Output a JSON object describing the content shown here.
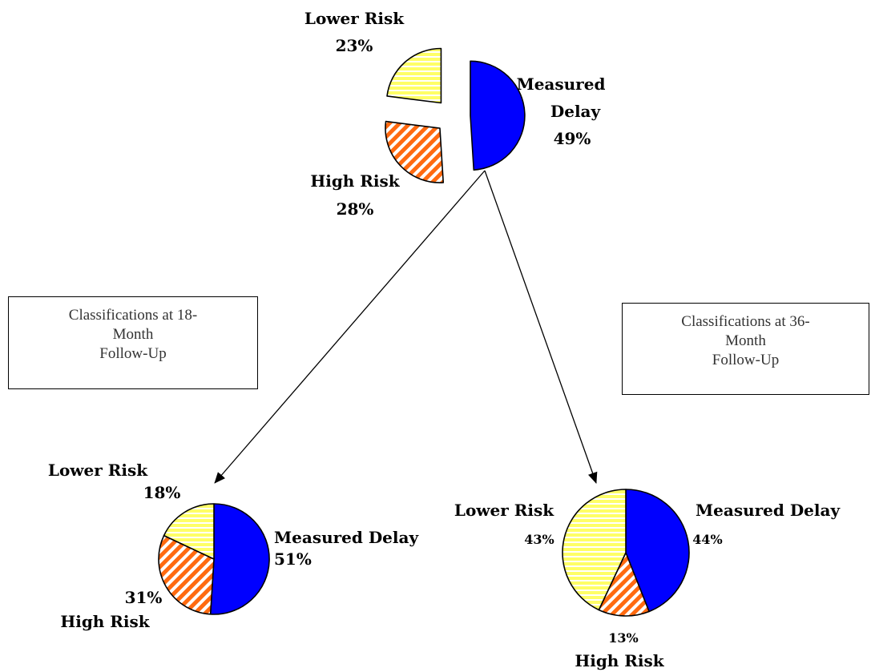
{
  "chart_data": [
    {
      "type": "pie",
      "slices": [
        {
          "name": "Lower Risk",
          "value": 23,
          "label": "23%",
          "color": "#ffff66",
          "pattern": "horizontal-stripes"
        },
        {
          "name": "High Risk",
          "value": 28,
          "label": "28%",
          "color": "#ff6600",
          "pattern": "diagonal-stripes"
        },
        {
          "name": "Measured Delay",
          "value": 49,
          "label": "49%",
          "color": "#0000ff",
          "pattern": "solid"
        }
      ]
    },
    {
      "type": "pie",
      "slices": [
        {
          "name": "Lower Risk",
          "value": 18,
          "label": "18%",
          "color": "#ffff66",
          "pattern": "horizontal-stripes"
        },
        {
          "name": "High Risk",
          "value": 31,
          "label": "31%",
          "color": "#ff6600",
          "pattern": "diagonal-stripes"
        },
        {
          "name": "Measured Delay",
          "value": 51,
          "label": "51%",
          "color": "#0000ff",
          "pattern": "solid"
        }
      ]
    },
    {
      "type": "pie",
      "slices": [
        {
          "name": "Lower Risk",
          "value": 43,
          "label": "43%",
          "color": "#ffff66",
          "pattern": "horizontal-stripes"
        },
        {
          "name": "High Risk",
          "value": 13,
          "label": "13%",
          "color": "#ff6600",
          "pattern": "diagonal-stripes"
        },
        {
          "name": "Measured Delay",
          "value": 44,
          "label": "44%",
          "color": "#0000ff",
          "pattern": "solid"
        }
      ]
    }
  ],
  "top": {
    "lower_name": "Lower Risk",
    "lower_pct": "23%",
    "high_name": "High Risk",
    "high_pct": "28%",
    "delay_line1": "Measured",
    "delay_line2": "Delay",
    "delay_pct": "49%"
  },
  "left": {
    "lower_name": "Lower Risk",
    "lower_pct": "18%",
    "high_name": "High Risk",
    "high_pct": "31%",
    "delay_name": "Measured Delay",
    "delay_pct": "51%"
  },
  "right": {
    "lower_name": "Lower Risk",
    "lower_pct": "43%",
    "high_name": "High Risk",
    "high_pct": "13%",
    "delay_name": "Measured Delay",
    "delay_pct": "44%"
  },
  "box_18": {
    "line1": "Classifications at 18-",
    "line2": "Month",
    "line3": "Follow-Up"
  },
  "box_36": {
    "line1": "Classifications at 36-",
    "line2": "Month",
    "line3": "Follow-Up"
  }
}
